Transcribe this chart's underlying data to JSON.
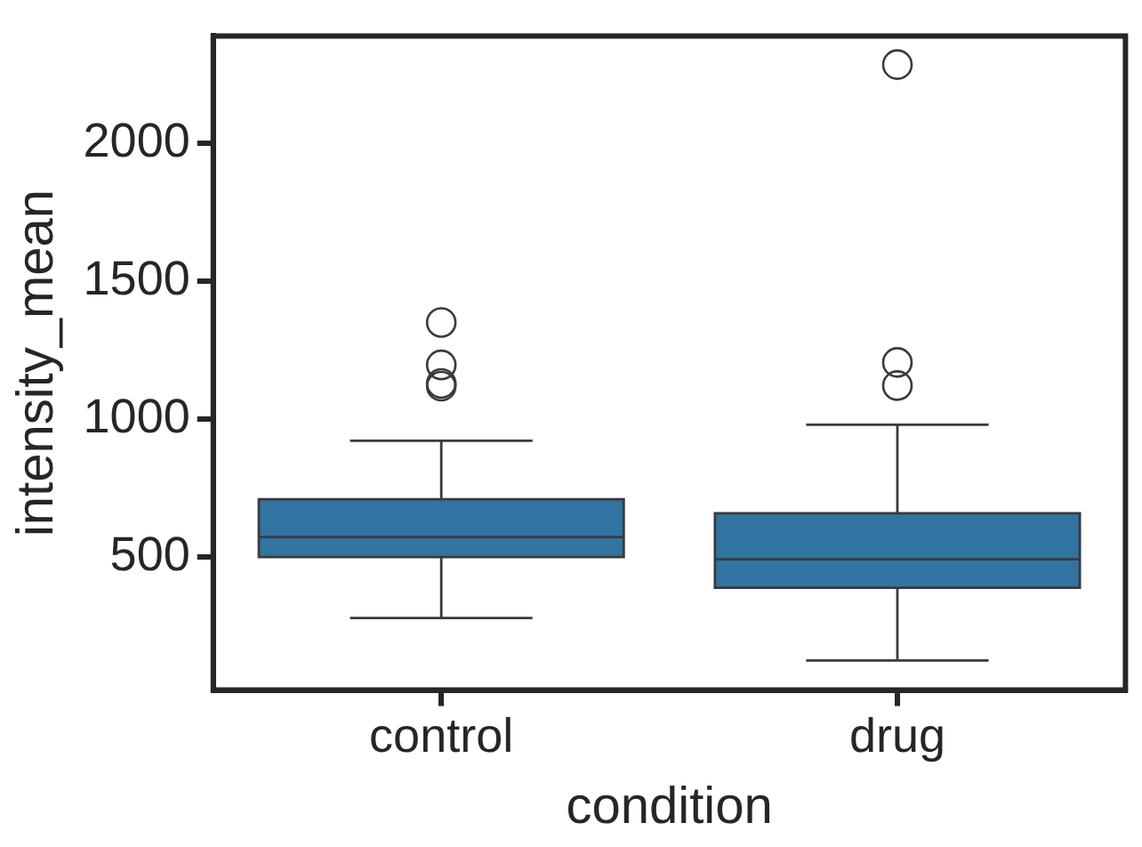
{
  "chart_data": {
    "type": "box",
    "categories": [
      "control",
      "drug"
    ],
    "color": "#3274a1",
    "xlabel": "condition",
    "ylabel": "intensity_mean",
    "ylim": [
      18,
      2390
    ],
    "yticks": [
      500,
      1000,
      1500,
      2000
    ],
    "boxes": [
      {
        "low": 279,
        "q1": 500,
        "median": 573,
        "q3": 710,
        "high": 922,
        "outliers": [
          1351,
          1197,
          1130,
          1120
        ]
      },
      {
        "low": 125,
        "q1": 389,
        "median": 492,
        "q3": 659,
        "high": 980,
        "outliers": [
          2286,
          1206,
          1122
        ]
      }
    ]
  }
}
